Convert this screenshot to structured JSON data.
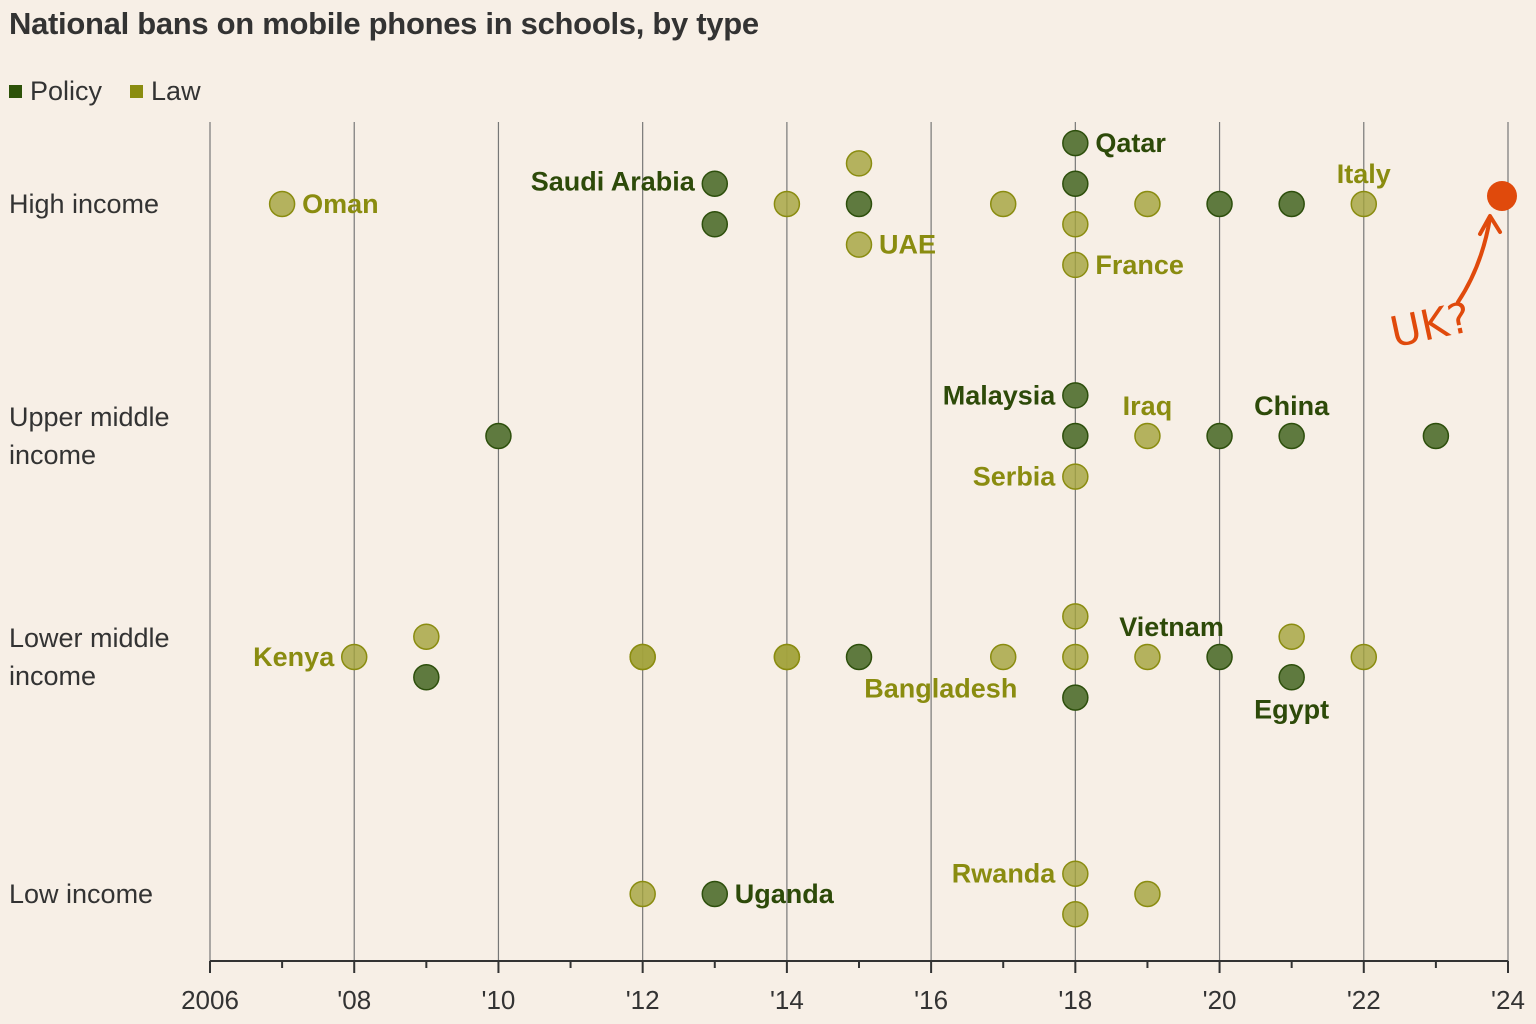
{
  "chart_data": {
    "type": "scatter",
    "title": "National bans on mobile phones in schools, by type",
    "legend": [
      {
        "name": "Policy",
        "color": "#2d5209"
      },
      {
        "name": "Law",
        "color": "#8a8c10"
      }
    ],
    "legend_position": "top-left",
    "xlim": [
      2006,
      2024
    ],
    "x_ticks": [
      {
        "value": 2006,
        "label": "2006"
      },
      {
        "value": 2008,
        "label": "'08"
      },
      {
        "value": 2010,
        "label": "'10"
      },
      {
        "value": 2012,
        "label": "'12"
      },
      {
        "value": 2014,
        "label": "'14"
      },
      {
        "value": 2016,
        "label": "'16"
      },
      {
        "value": 2018,
        "label": "'18"
      },
      {
        "value": 2020,
        "label": "'20"
      },
      {
        "value": 2022,
        "label": "'22"
      },
      {
        "value": 2024,
        "label": "'24"
      }
    ],
    "categories": [
      {
        "id": "high",
        "label": [
          "High income"
        ]
      },
      {
        "id": "upper",
        "label": [
          "Upper middle",
          "income"
        ]
      },
      {
        "id": "lower",
        "label": [
          "Lower middle",
          "income"
        ]
      },
      {
        "id": "low",
        "label": [
          "Low income"
        ]
      }
    ],
    "points": [
      {
        "cat": "high",
        "year": 2007,
        "type": "law",
        "label": "Oman",
        "place": "right"
      },
      {
        "cat": "high",
        "year": 2013,
        "type": "policy",
        "label": "Saudi Arabia",
        "place": "left"
      },
      {
        "cat": "high",
        "year": 2013,
        "type": "policy"
      },
      {
        "cat": "high",
        "year": 2014,
        "type": "law"
      },
      {
        "cat": "high",
        "year": 2015,
        "type": "law"
      },
      {
        "cat": "high",
        "year": 2015,
        "type": "policy"
      },
      {
        "cat": "high",
        "year": 2015,
        "type": "law",
        "label": "UAE",
        "place": "right"
      },
      {
        "cat": "high",
        "year": 2017,
        "type": "law"
      },
      {
        "cat": "high",
        "year": 2018,
        "type": "policy",
        "label": "Qatar",
        "place": "right"
      },
      {
        "cat": "high",
        "year": 2018,
        "type": "policy"
      },
      {
        "cat": "high",
        "year": 2018,
        "type": "law"
      },
      {
        "cat": "high",
        "year": 2018,
        "type": "law",
        "label": "France",
        "place": "right"
      },
      {
        "cat": "high",
        "year": 2019,
        "type": "law"
      },
      {
        "cat": "high",
        "year": 2020,
        "type": "policy"
      },
      {
        "cat": "high",
        "year": 2021,
        "type": "policy"
      },
      {
        "cat": "high",
        "year": 2022,
        "type": "law",
        "label": "Italy",
        "place": "above"
      },
      {
        "cat": "upper",
        "year": 2010,
        "type": "policy"
      },
      {
        "cat": "upper",
        "year": 2018,
        "type": "policy",
        "label": "Malaysia",
        "place": "left"
      },
      {
        "cat": "upper",
        "year": 2018,
        "type": "policy"
      },
      {
        "cat": "upper",
        "year": 2018,
        "type": "law",
        "label": "Serbia",
        "place": "left"
      },
      {
        "cat": "upper",
        "year": 2019,
        "type": "law",
        "label": "Iraq",
        "place": "above"
      },
      {
        "cat": "upper",
        "year": 2020,
        "type": "policy"
      },
      {
        "cat": "upper",
        "year": 2021,
        "type": "policy",
        "label": "China",
        "place": "above"
      },
      {
        "cat": "upper",
        "year": 2023,
        "type": "policy"
      },
      {
        "cat": "lower",
        "year": 2008,
        "type": "law",
        "label": "Kenya",
        "place": "left"
      },
      {
        "cat": "lower",
        "year": 2009,
        "type": "law"
      },
      {
        "cat": "lower",
        "year": 2009,
        "type": "policy"
      },
      {
        "cat": "lower",
        "year": 2012,
        "type": "law",
        "count": 2
      },
      {
        "cat": "lower",
        "year": 2014,
        "type": "law",
        "count": 2
      },
      {
        "cat": "lower",
        "year": 2015,
        "type": "policy"
      },
      {
        "cat": "lower",
        "year": 2017,
        "type": "law"
      },
      {
        "cat": "lower",
        "year": 2018,
        "type": "law"
      },
      {
        "cat": "lower",
        "year": 2018,
        "type": "law"
      },
      {
        "cat": "lower",
        "year": 2018,
        "type": "policy",
        "label": "Bangladesh",
        "labeltype": "law",
        "place": "left"
      },
      {
        "cat": "lower",
        "year": 2019,
        "type": "law"
      },
      {
        "cat": "lower",
        "year": 2020,
        "type": "policy",
        "label": "Vietnam",
        "place": "above"
      },
      {
        "cat": "lower",
        "year": 2021,
        "type": "law"
      },
      {
        "cat": "lower",
        "year": 2021,
        "type": "policy",
        "label": "Egypt",
        "place": "below"
      },
      {
        "cat": "lower",
        "year": 2022,
        "type": "law"
      },
      {
        "cat": "low",
        "year": 2012,
        "type": "law"
      },
      {
        "cat": "low",
        "year": 2013,
        "type": "policy",
        "label": "Uganda",
        "place": "right"
      },
      {
        "cat": "low",
        "year": 2018,
        "type": "law",
        "label": "Rwanda",
        "place": "left"
      },
      {
        "cat": "low",
        "year": 2018,
        "type": "law"
      },
      {
        "cat": "low",
        "year": 2019,
        "type": "law"
      }
    ],
    "annotation": {
      "text": "UK?",
      "year": 2024,
      "cat": "high",
      "color": "#e04a0c"
    }
  },
  "colors": {
    "policy_fill": "#5f7a3f",
    "policy_stroke": "#2d4f0c",
    "law_fill": "#a2a23c",
    "law_stroke": "#8a8c10",
    "policy_text": "#2d4a09",
    "law_text": "#8a8c10",
    "grid": "#777"
  }
}
